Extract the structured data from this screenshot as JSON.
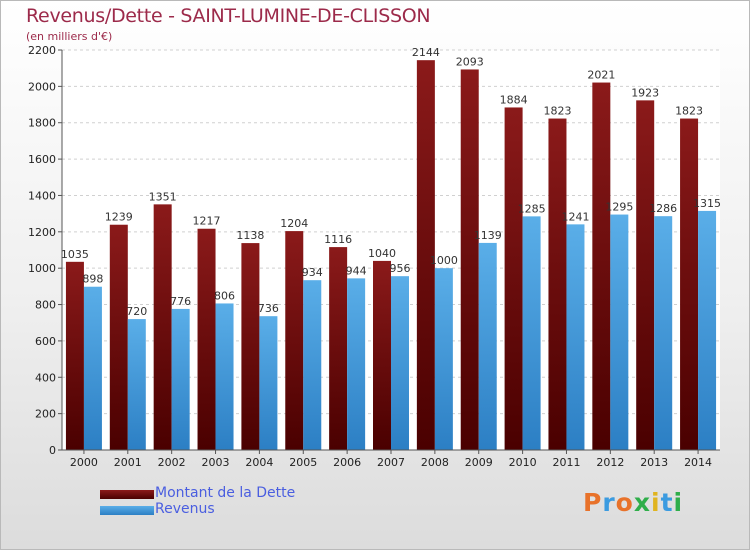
{
  "title": "Revenus/Dette - SAINT-LUMINE-DE-CLISSON",
  "subtitle": "(en milliers d'€)",
  "logo": {
    "letters": [
      "P",
      "r",
      "o",
      "x",
      "i",
      "t",
      "i"
    ],
    "colors": [
      "#e8722a",
      "#3b9be0",
      "#e8722a",
      "#2fae4a",
      "#e0b420",
      "#3b9be0",
      "#2fae4a"
    ]
  },
  "colors": {
    "dette": "#8b1a1a",
    "dette_dark": "#4a0000",
    "revenus": "#5aaee8",
    "revenus_dark": "#2c7fc4",
    "gridline": "#d0d0d0",
    "axis": "#555555"
  },
  "chart_data": {
    "type": "bar",
    "title": "Revenus/Dette - SAINT-LUMINE-DE-CLISSON",
    "subtitle": "(en milliers d'€)",
    "categories": [
      "2000",
      "2001",
      "2002",
      "2003",
      "2004",
      "2005",
      "2006",
      "2007",
      "2008",
      "2009",
      "2010",
      "2011",
      "2012",
      "2013",
      "2014"
    ],
    "series": [
      {
        "name": "Montant de la Dette",
        "values": [
          1035,
          1239,
          1351,
          1217,
          1138,
          1204,
          1116,
          1040,
          2144,
          2093,
          1884,
          1823,
          2021,
          1923,
          1823
        ]
      },
      {
        "name": "Revenus",
        "values": [
          898,
          720,
          776,
          806,
          736,
          934,
          944,
          956,
          1000,
          1139,
          1285,
          1241,
          1295,
          1286,
          1315
        ]
      }
    ],
    "ylim": [
      0,
      2200
    ],
    "yticks": [
      0,
      200,
      400,
      600,
      800,
      1000,
      1200,
      1400,
      1600,
      1800,
      2000,
      2200
    ],
    "grid": true,
    "legend": "bottom-left"
  }
}
